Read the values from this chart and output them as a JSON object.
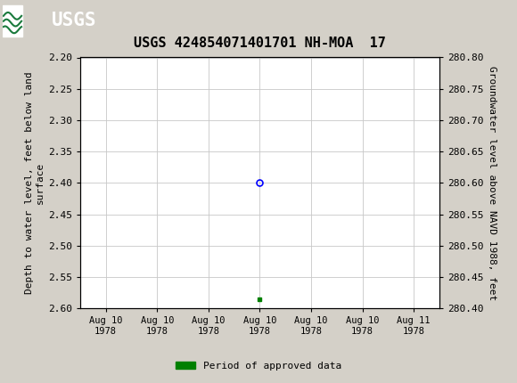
{
  "title": "USGS 424854071401701 NH-MOA  17",
  "header_bg_color": "#1a7a3c",
  "plot_bg_color": "#ffffff",
  "fig_bg_color": "#d4d0c8",
  "grid_color": "#c8c8c8",
  "left_ylabel_line1": "Depth to water level, feet below land",
  "left_ylabel_line2": "surface",
  "right_ylabel": "Groundwater level above NAVD 1988, feet",
  "ylim_left": [
    2.2,
    2.6
  ],
  "ylim_right": [
    280.4,
    280.8
  ],
  "yticks_left": [
    2.2,
    2.25,
    2.3,
    2.35,
    2.4,
    2.45,
    2.5,
    2.55,
    2.6
  ],
  "yticks_right": [
    280.4,
    280.45,
    280.5,
    280.55,
    280.6,
    280.65,
    280.7,
    280.75,
    280.8
  ],
  "data_point_x": 3.5,
  "data_point_y": 2.4,
  "data_point_color": "blue",
  "bar_x": 3.5,
  "bar_y": 2.585,
  "bar_color": "#008000",
  "xlim": [
    0.0,
    7.0
  ],
  "xtick_positions": [
    0.5,
    1.5,
    2.5,
    3.5,
    4.5,
    5.5,
    6.5
  ],
  "xtick_labels": [
    "Aug 10\n1978",
    "Aug 10\n1978",
    "Aug 10\n1978",
    "Aug 10\n1978",
    "Aug 10\n1978",
    "Aug 10\n1978",
    "Aug 11\n1978"
  ],
  "legend_label": "Period of approved data",
  "legend_color": "#008000",
  "font_family": "DejaVu Sans Mono",
  "title_fontsize": 11,
  "axis_fontsize": 8,
  "tick_fontsize": 8
}
